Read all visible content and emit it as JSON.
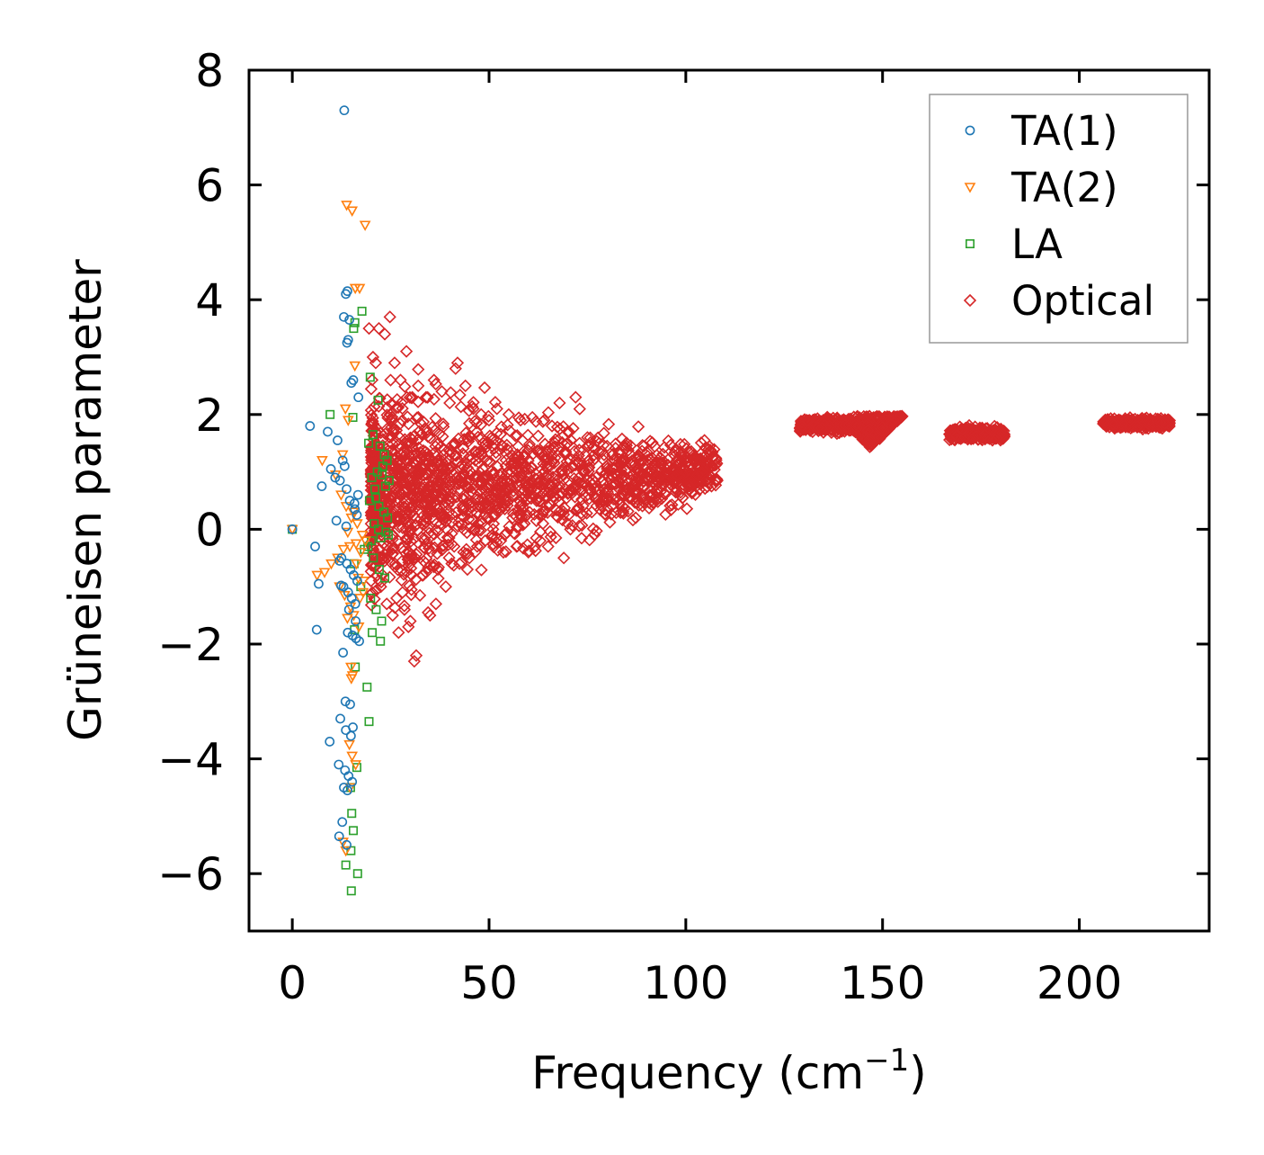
{
  "chart_data": {
    "type": "scatter",
    "title": "",
    "xlabel": "Frequency (cm",
    "xlabel_sup": "−1",
    "xlabel_close": ")",
    "ylabel": "Grüneisen parameter",
    "xlim": [
      -11,
      233
    ],
    "ylim": [
      -7,
      8
    ],
    "xticks": [
      0,
      50,
      100,
      150,
      200
    ],
    "yticks": [
      -6,
      -4,
      -2,
      0,
      2,
      4,
      6,
      8
    ],
    "xtick_labels": [
      "0",
      "50",
      "100",
      "150",
      "200"
    ],
    "ytick_labels": [
      "−6",
      "−4",
      "−2",
      "0",
      "2",
      "4",
      "6",
      "8"
    ],
    "grid": false,
    "legend_position": "top-right",
    "series": [
      {
        "name": "TA(1)",
        "marker": "circle",
        "color": "#1f77b4",
        "x": [
          0,
          13.2,
          14.0,
          13.6,
          13.1,
          14.5,
          14.2,
          13.9,
          15.5,
          15.0,
          16.8,
          4.5,
          9.0,
          11.5,
          12.8,
          13.3,
          7.5,
          9.8,
          10.9,
          12.1,
          13.8,
          14.6,
          15.9,
          16.4,
          11.2,
          5.8,
          6.7,
          12.5,
          13.9,
          14.8,
          15.6,
          16.5,
          13.0,
          14.2,
          15.1,
          16.0,
          6.2,
          14.1,
          15.3,
          16.2,
          17.0,
          12.9,
          13.5,
          14.7,
          15.4,
          12.2,
          13.6,
          14.9,
          9.5,
          11.8,
          13.4,
          14.3,
          15.2,
          14.0,
          13.1,
          12.7,
          11.9,
          13.8,
          12.4,
          12.0,
          13.7,
          15.8,
          16.7,
          14.4,
          16.1
        ],
        "y": [
          0,
          7.3,
          4.15,
          4.1,
          3.7,
          3.65,
          3.3,
          3.25,
          2.6,
          2.55,
          2.3,
          1.8,
          1.7,
          1.55,
          1.2,
          1.1,
          0.75,
          1.05,
          0.9,
          0.85,
          0.7,
          0.5,
          0.35,
          0.25,
          0.15,
          -0.3,
          -0.95,
          -0.5,
          -0.6,
          -0.7,
          -0.8,
          -0.9,
          -1.0,
          -1.1,
          -1.2,
          -1.3,
          -1.75,
          -1.8,
          -1.85,
          -1.9,
          -1.95,
          -2.15,
          -3.0,
          -3.05,
          -3.45,
          -3.3,
          -3.5,
          -3.6,
          -3.7,
          -4.1,
          -4.2,
          -4.3,
          -4.4,
          -4.55,
          -4.5,
          -5.1,
          -5.35,
          -5.5,
          -0.98,
          -0.55,
          0.05,
          0.45,
          0.6,
          -1.4,
          -1.6
        ]
      },
      {
        "name": "TA(2)",
        "marker": "triangle-down",
        "color": "#ff7f0e",
        "x": [
          0,
          13.8,
          15.2,
          18.5,
          16.0,
          17.1,
          15.9,
          13.5,
          14.2,
          12.8,
          7.6,
          11.0,
          12.4,
          13.7,
          15.0,
          16.5,
          17.8,
          18.6,
          6.3,
          8.2,
          9.9,
          11.5,
          13.0,
          14.6,
          16.2,
          17.4,
          18.1,
          12.0,
          13.3,
          14.8,
          15.6,
          16.9,
          14.9,
          15.3,
          15.0,
          14.5,
          15.2,
          16.1,
          14.7,
          12.9,
          13.6,
          14.1,
          15.5,
          16.3,
          17.2,
          18.0,
          16.8,
          14.0
        ],
        "y": [
          0,
          5.65,
          5.55,
          5.3,
          4.2,
          4.2,
          2.85,
          2.1,
          1.9,
          1.3,
          1.2,
          0.95,
          0.6,
          0.4,
          0.2,
          0.1,
          -0.1,
          -0.2,
          -0.8,
          -0.75,
          -0.6,
          -0.5,
          -0.35,
          -0.3,
          -0.25,
          -0.4,
          -0.9,
          -1.0,
          -1.15,
          -1.35,
          -1.5,
          -1.7,
          -2.4,
          -2.55,
          -2.6,
          -3.75,
          -3.95,
          -4.1,
          -4.5,
          -5.45,
          -5.6,
          -0.05,
          0.3,
          -0.6,
          -1.2,
          -1.1,
          -0.85,
          -1.55
        ]
      },
      {
        "name": "LA",
        "marker": "square",
        "color": "#2ca02c",
        "x": [
          0,
          17.7,
          15.6,
          15.9,
          9.6,
          15.4,
          19.8,
          21.8,
          20.5,
          19.4,
          22.3,
          23.4,
          24.1,
          23.0,
          21.6,
          20.2,
          22.8,
          24.6,
          23.7,
          21.0,
          19.6,
          22.0,
          23.3,
          24.2,
          20.8,
          21.9,
          23.8,
          24.4,
          22.5,
          20.1,
          19.2,
          18.3,
          20.6,
          22.1,
          23.5,
          17.4,
          19.9,
          21.3,
          22.7,
          15.8,
          20.3,
          22.4,
          19.0,
          19.5,
          16.0,
          14.8,
          15.1,
          16.4,
          15.5,
          14.9,
          16.6,
          13.6,
          15.0,
          15.7,
          21.2
        ],
        "y": [
          0,
          3.8,
          3.5,
          3.6,
          2.0,
          1.95,
          2.65,
          2.25,
          1.65,
          1.5,
          1.45,
          1.3,
          1.2,
          1.1,
          1.0,
          0.9,
          0.95,
          0.85,
          0.75,
          0.7,
          0.5,
          0.4,
          0.3,
          0.2,
          0.1,
          0.0,
          -0.05,
          -0.1,
          -0.15,
          -0.2,
          -0.3,
          -0.35,
          -0.5,
          -0.7,
          -0.85,
          -1.0,
          -1.2,
          -1.4,
          -1.6,
          -1.75,
          -1.8,
          -1.95,
          -2.75,
          -3.35,
          -2.4,
          -4.5,
          -4.95,
          -4.15,
          -5.25,
          -5.6,
          -6.0,
          -5.85,
          -6.3,
          -0.6,
          0.55
        ]
      },
      {
        "name": "Optical",
        "marker": "diamond",
        "color": "#d62728",
        "x": [
          19.5,
          20.5,
          21.2,
          22.0,
          23.5,
          24.8,
          26.0,
          27.5,
          29.0,
          30.5,
          32.0,
          34.0,
          36.0,
          38.0,
          40.0,
          42.0,
          41.5,
          44.0,
          46.0,
          48.0,
          50.0,
          52.0,
          55.0,
          58.0,
          61.0,
          64.0,
          66.0,
          68.0,
          70.0,
          72.0,
          75.0,
          78.0,
          80.0,
          83.0,
          86.0,
          89.0,
          92.0,
          95.0,
          98.0,
          100.0,
          103.0,
          108.0,
          26.5,
          28.0,
          33.0,
          37.0,
          42.5,
          47.0,
          53.0,
          57.0,
          60.0,
          63.0,
          67.0,
          69.0,
          31.0,
          31.5,
          35.0,
          39.0,
          43.5,
          45.0,
          49.0,
          54.0,
          59.0,
          62.0,
          65.0,
          24.0,
          25.5,
          28.5,
          30.0,
          20.0,
          21.5,
          23.0,
          22.5,
          27.0,
          29.5,
          34.5,
          36.5,
          40.5,
          44.5,
          51.0,
          56.0,
          73.0,
          77.0,
          82.0,
          88.0,
          93.0,
          97.0,
          101.0,
          22.8,
          25.0,
          32.5,
          38.5,
          46.5,
          48.5
        ],
        "y": [
          3.5,
          3.0,
          2.9,
          3.5,
          3.4,
          3.7,
          2.9,
          2.6,
          3.1,
          2.3,
          2.5,
          2.3,
          2.6,
          2.4,
          2.2,
          2.9,
          2.8,
          2.5,
          2.1,
          2.0,
          1.9,
          2.1,
          2.0,
          1.9,
          1.95,
          1.9,
          1.8,
          1.75,
          1.7,
          2.3,
          1.6,
          1.5,
          1.45,
          1.35,
          1.3,
          1.2,
          1.1,
          1.05,
          0.95,
          1.0,
          0.95,
          0.85,
          -1.2,
          -1.1,
          -0.8,
          -0.7,
          -0.6,
          -0.3,
          -0.2,
          -0.3,
          -0.4,
          -0.2,
          -0.15,
          -0.5,
          -2.3,
          -2.2,
          -1.5,
          -1.0,
          -0.4,
          -0.5,
          -0.2,
          -0.1,
          0.1,
          -0.15,
          -0.3,
          -1.3,
          -1.5,
          -1.4,
          -1.6,
          -0.9,
          -0.8,
          -0.5,
          -1.0,
          -1.8,
          -1.7,
          -1.45,
          -1.3,
          -0.6,
          -0.7,
          0.0,
          0.2,
          1.5,
          1.4,
          1.2,
          1.0,
          0.9,
          0.8,
          0.75,
          0.0,
          0.5,
          1.0,
          1.3,
          1.2,
          1.5
        ]
      }
    ],
    "optical_clusters": [
      {
        "x_range": [
          129,
          143
        ],
        "y_center": 1.82,
        "y_spread": 0.12
      },
      {
        "x_range": [
          143,
          155
        ],
        "y_center": 1.72,
        "y_spread": 0.28
      },
      {
        "x_range": [
          167,
          181
        ],
        "y_center": 1.66,
        "y_spread": 0.1
      },
      {
        "x_range": [
          206,
          223
        ],
        "y_center": 1.85,
        "y_spread": 0.08
      }
    ],
    "optical_cloud": {
      "x_range": [
        20,
        110
      ],
      "y_center": 0.6,
      "y_spread": 1.35,
      "decay_x": 108
    }
  }
}
